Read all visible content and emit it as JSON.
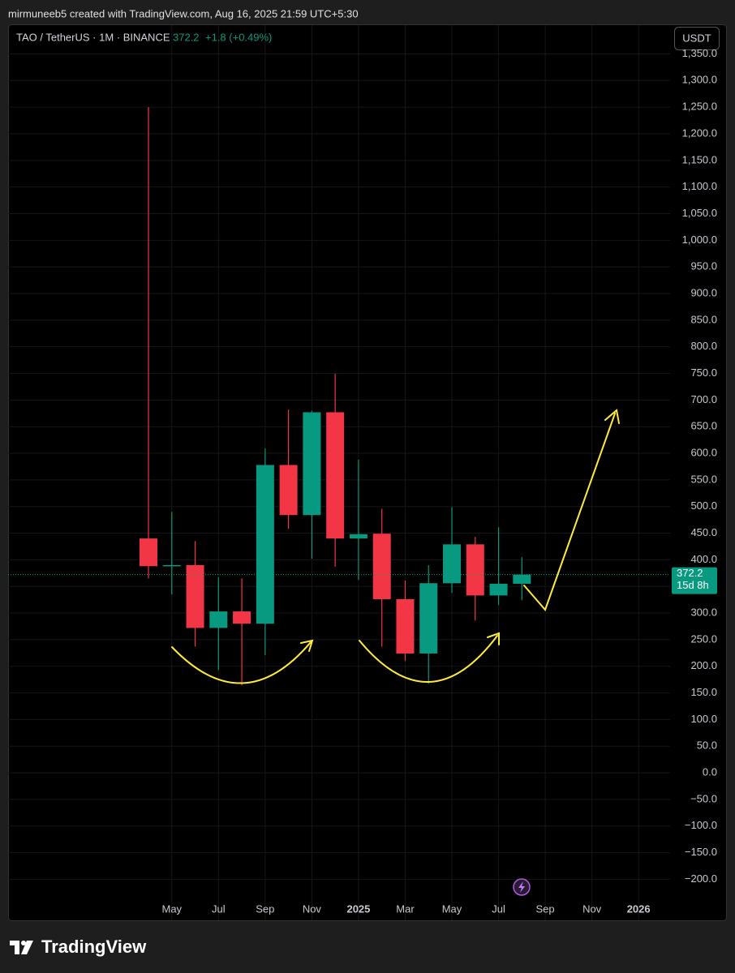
{
  "attribution": "mirmuneeb5 created with TradingView.com, Aug 16, 2025 21:59 UTC+5:30",
  "brand": "TradingView",
  "chart_data": {
    "type": "candlestick",
    "title": "TAO / TetherUS · 1M · BINANCE",
    "last_value": 372.2,
    "change": "+1.8 (+0.49%)",
    "countdown": "15d 8h",
    "currency": "USDT",
    "categories": [
      null,
      "May",
      null,
      "Jul",
      null,
      "Sep",
      null,
      "Nov",
      null,
      "2025",
      null,
      "Mar",
      null,
      "May",
      null,
      "Jul",
      null,
      "Sep",
      null,
      "Nov",
      null,
      "2026"
    ],
    "series": [
      {
        "name": "open",
        "values": [
          440,
          388,
          390,
          272,
          303,
          280,
          578,
          484,
          677,
          440,
          449,
          326,
          224,
          356,
          429,
          333,
          355,
          null,
          null,
          null,
          null,
          null
        ]
      },
      {
        "name": "high",
        "values": [
          1250,
          490,
          435,
          367,
          365,
          609,
          682,
          680,
          749,
          588,
          496,
          361,
          390,
          499,
          443,
          461,
          405,
          null,
          null,
          null,
          null,
          null
        ]
      },
      {
        "name": "low",
        "values": [
          365,
          335,
          237,
          193,
          164,
          221,
          458,
          402,
          387,
          362,
          237,
          210,
          167,
          338,
          286,
          315,
          324,
          null,
          null,
          null,
          null,
          null
        ]
      },
      {
        "name": "close",
        "values": [
          388,
          390,
          272,
          303,
          280,
          578,
          484,
          677,
          440,
          448,
          326,
          224,
          356,
          429,
          333,
          355,
          372.2,
          null,
          null,
          null,
          null,
          null
        ]
      }
    ],
    "up_color": "#089981",
    "down_color": "#f23645",
    "ylim": [
      -277,
      1404
    ],
    "yticks": [
      {
        "value": 1350,
        "label": "1,350.0"
      },
      {
        "value": 1300,
        "label": "1,300.0"
      },
      {
        "value": 1250,
        "label": "1,250.0"
      },
      {
        "value": 1200,
        "label": "1,200.0"
      },
      {
        "value": 1150,
        "label": "1,150.0"
      },
      {
        "value": 1100,
        "label": "1,100.0"
      },
      {
        "value": 1050,
        "label": "1,050.0"
      },
      {
        "value": 1000,
        "label": "1,000.0"
      },
      {
        "value": 950,
        "label": "950.0"
      },
      {
        "value": 900,
        "label": "900.0"
      },
      {
        "value": 850,
        "label": "850.0"
      },
      {
        "value": 800,
        "label": "800.0"
      },
      {
        "value": 750,
        "label": "750.0"
      },
      {
        "value": 700,
        "label": "700.0"
      },
      {
        "value": 650,
        "label": "650.0"
      },
      {
        "value": 600,
        "label": "600.0"
      },
      {
        "value": 550,
        "label": "550.0"
      },
      {
        "value": 500,
        "label": "500.0"
      },
      {
        "value": 450,
        "label": "450.0"
      },
      {
        "value": 400,
        "label": "400.0"
      },
      {
        "value": 350,
        "label": "350.0"
      },
      {
        "value": 300,
        "label": "300.0"
      },
      {
        "value": 250,
        "label": "250.0"
      },
      {
        "value": 200,
        "label": "200.0"
      },
      {
        "value": 150,
        "label": "150.0"
      },
      {
        "value": 100,
        "label": "100.0"
      },
      {
        "value": 50,
        "label": "50.0"
      },
      {
        "value": 0,
        "label": "0.0"
      },
      {
        "value": -50,
        "label": "−50.0"
      },
      {
        "value": -100,
        "label": "−100.0"
      },
      {
        "value": -150,
        "label": "−150.0"
      },
      {
        "value": -200,
        "label": "−200.0"
      }
    ],
    "grid": true
  }
}
